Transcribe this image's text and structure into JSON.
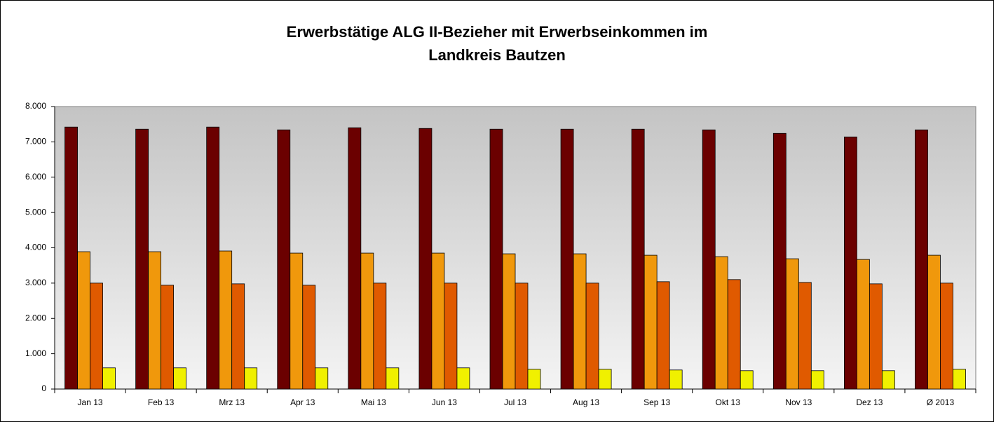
{
  "chart_data": {
    "type": "bar",
    "title": [
      "Erwerbstätige ALG II-Bezieher mit Erwerbseinkommen im",
      "Landkreis Bautzen"
    ],
    "categories": [
      "Jan 13",
      "Feb 13",
      "Mrz 13",
      "Apr 13",
      "Mai 13",
      "Jun 13",
      "Jul 13",
      "Aug 13",
      "Sep 13",
      "Okt 13",
      "Nov 13",
      "Dez 13",
      "Ø 2013"
    ],
    "series": [
      {
        "color": "#6b0000",
        "values": [
          7420,
          7360,
          7420,
          7340,
          7400,
          7380,
          7360,
          7360,
          7360,
          7340,
          7240,
          7140,
          7340
        ]
      },
      {
        "color": "#f0980c",
        "values": [
          3890,
          3890,
          3910,
          3850,
          3850,
          3850,
          3830,
          3830,
          3790,
          3750,
          3690,
          3670,
          3790
        ]
      },
      {
        "color": "#e05a00",
        "values": [
          3000,
          2940,
          2980,
          2940,
          3000,
          3000,
          3000,
          3000,
          3040,
          3100,
          3020,
          2980,
          3000
        ]
      },
      {
        "color": "#f0f000",
        "values": [
          600,
          600,
          600,
          600,
          600,
          600,
          560,
          560,
          540,
          520,
          520,
          520,
          560
        ]
      }
    ],
    "ylim": [
      0,
      8000
    ],
    "yticks": [
      0,
      {
        "value": 1000,
        "label": "1.000"
      },
      {
        "value": 2000,
        "label": "2.000"
      },
      {
        "value": 3000,
        "label": "3.000"
      },
      {
        "value": 4000,
        "label": "4.000"
      },
      {
        "value": 5000,
        "label": "5.000"
      },
      {
        "value": 6000,
        "label": "6.000"
      },
      {
        "value": 7000,
        "label": "7.000"
      },
      {
        "value": 8000,
        "label": "8.000"
      }
    ],
    "grid": false
  }
}
